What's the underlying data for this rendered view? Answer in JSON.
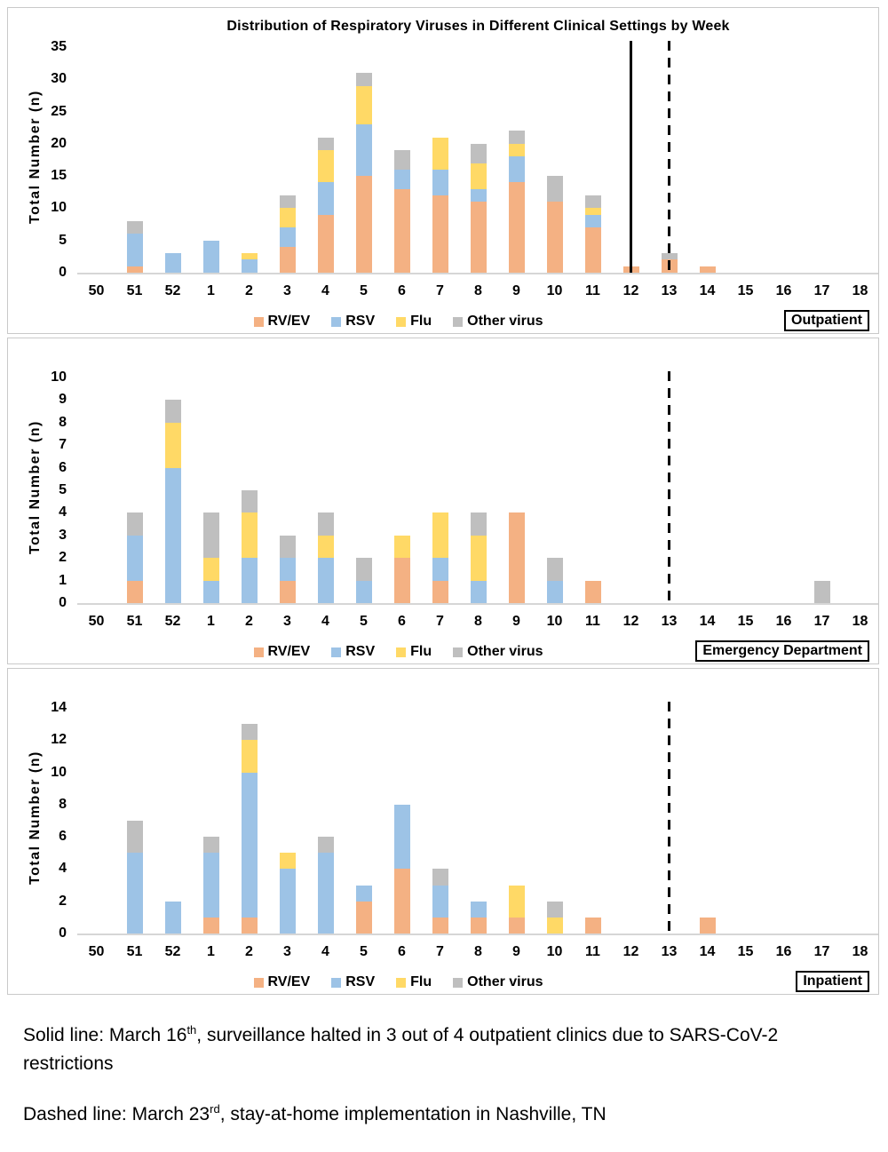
{
  "page": {
    "title": "Distribution of Respiratory Viruses in Different Clinical Settings by Week"
  },
  "footer": {
    "note1_pre": "Solid line: March 16",
    "note1_sup": "th",
    "note1_post": ", surveillance halted in 3 out of 4 outpatient clinics due to SARS-CoV-2 restrictions",
    "note2_pre": "Dashed line: March 23",
    "note2_sup": "rd",
    "note2_post": ", stay-at-home implementation in Nashville, TN"
  },
  "colors": {
    "rv_ev": "#F4B183",
    "rsv": "#9DC3E6",
    "flu": "#FFD966",
    "other": "#BFBFBF",
    "axis_line": "#D6D6D6",
    "marker_line": "#000000"
  },
  "chart_data": [
    {
      "type": "bar",
      "stacked": true,
      "title": "Distribution of Respiratory Viruses in Different Clinical Settings by Week",
      "panel_label": "Outpatient",
      "ylabel": "Total Number (n)",
      "ylim": [
        0,
        35
      ],
      "yticks": [
        0,
        5,
        10,
        15,
        20,
        25,
        30,
        35
      ],
      "grid": false,
      "legend_position": "bottom",
      "categories": [
        "50",
        "51",
        "52",
        "1",
        "2",
        "3",
        "4",
        "5",
        "6",
        "7",
        "8",
        "9",
        "10",
        "11",
        "12",
        "13",
        "14",
        "15",
        "16",
        "17",
        "18"
      ],
      "series": [
        {
          "name": "RV/EV",
          "color": "#F4B183",
          "values": [
            0,
            1,
            0,
            0,
            0,
            4,
            9,
            15,
            13,
            12,
            11,
            14,
            11,
            7,
            1,
            2,
            1,
            0,
            0,
            0,
            0
          ]
        },
        {
          "name": "RSV",
          "color": "#9DC3E6",
          "values": [
            0,
            5,
            3,
            5,
            2,
            3,
            5,
            8,
            3,
            4,
            2,
            4,
            0,
            2,
            0,
            0,
            0,
            0,
            0,
            0,
            0
          ]
        },
        {
          "name": "Flu",
          "color": "#FFD966",
          "values": [
            0,
            0,
            0,
            0,
            1,
            3,
            5,
            6,
            0,
            5,
            4,
            2,
            0,
            1,
            0,
            0,
            0,
            0,
            0,
            0,
            0
          ]
        },
        {
          "name": "Other virus",
          "color": "#BFBFBF",
          "values": [
            0,
            2,
            0,
            0,
            0,
            2,
            2,
            2,
            3,
            0,
            3,
            2,
            4,
            2,
            0,
            1,
            0,
            0,
            0,
            0,
            0
          ]
        }
      ],
      "vlines": [
        {
          "category": "12",
          "style": "solid"
        },
        {
          "category": "13",
          "style": "dashed"
        }
      ]
    },
    {
      "type": "bar",
      "stacked": true,
      "title": "",
      "panel_label": "Emergency Department",
      "ylabel": "Total Number (n)",
      "ylim": [
        0,
        10
      ],
      "yticks": [
        0,
        1,
        2,
        3,
        4,
        5,
        6,
        7,
        8,
        9,
        10
      ],
      "grid": false,
      "legend_position": "bottom",
      "categories": [
        "50",
        "51",
        "52",
        "1",
        "2",
        "3",
        "4",
        "5",
        "6",
        "7",
        "8",
        "9",
        "10",
        "11",
        "12",
        "13",
        "14",
        "15",
        "16",
        "17",
        "18"
      ],
      "series": [
        {
          "name": "RV/EV",
          "color": "#F4B183",
          "values": [
            0,
            1,
            0,
            0,
            0,
            1,
            0,
            0,
            2,
            1,
            0,
            4,
            0,
            1,
            0,
            0,
            0,
            0,
            0,
            0,
            0
          ]
        },
        {
          "name": "RSV",
          "color": "#9DC3E6",
          "values": [
            0,
            2,
            6,
            1,
            2,
            1,
            2,
            1,
            0,
            1,
            1,
            0,
            1,
            0,
            0,
            0,
            0,
            0,
            0,
            0,
            0
          ]
        },
        {
          "name": "Flu",
          "color": "#FFD966",
          "values": [
            0,
            0,
            2,
            1,
            2,
            0,
            1,
            0,
            1,
            2,
            2,
            0,
            0,
            0,
            0,
            0,
            0,
            0,
            0,
            0,
            0
          ]
        },
        {
          "name": "Other virus",
          "color": "#BFBFBF",
          "values": [
            0,
            1,
            1,
            2,
            1,
            1,
            1,
            1,
            0,
            0,
            1,
            0,
            1,
            0,
            0,
            0,
            0,
            0,
            0,
            1,
            0
          ]
        }
      ],
      "vlines": [
        {
          "category": "13",
          "style": "dashed"
        }
      ]
    },
    {
      "type": "bar",
      "stacked": true,
      "title": "",
      "panel_label": "Inpatient",
      "ylabel": "Total Number (n)",
      "ylim": [
        0,
        14
      ],
      "yticks": [
        0,
        2,
        4,
        6,
        8,
        10,
        12,
        14
      ],
      "grid": false,
      "legend_position": "bottom",
      "categories": [
        "50",
        "51",
        "52",
        "1",
        "2",
        "3",
        "4",
        "5",
        "6",
        "7",
        "8",
        "9",
        "10",
        "11",
        "12",
        "13",
        "14",
        "15",
        "16",
        "17",
        "18"
      ],
      "series": [
        {
          "name": "RV/EV",
          "color": "#F4B183",
          "values": [
            0,
            0,
            0,
            1,
            1,
            0,
            0,
            2,
            4,
            1,
            1,
            1,
            0,
            1,
            0,
            0,
            1,
            0,
            0,
            0,
            0
          ]
        },
        {
          "name": "RSV",
          "color": "#9DC3E6",
          "values": [
            0,
            5,
            2,
            4,
            9,
            4,
            5,
            1,
            4,
            2,
            1,
            0,
            0,
            0,
            0,
            0,
            0,
            0,
            0,
            0,
            0
          ]
        },
        {
          "name": "Flu",
          "color": "#FFD966",
          "values": [
            0,
            0,
            0,
            0,
            2,
            1,
            0,
            0,
            0,
            0,
            0,
            2,
            1,
            0,
            0,
            0,
            0,
            0,
            0,
            0,
            0
          ]
        },
        {
          "name": "Other virus",
          "color": "#BFBFBF",
          "values": [
            0,
            2,
            0,
            1,
            1,
            0,
            1,
            0,
            0,
            1,
            0,
            0,
            1,
            0,
            0,
            0,
            0,
            0,
            0,
            0,
            0
          ]
        }
      ],
      "vlines": [
        {
          "category": "13",
          "style": "dashed"
        }
      ]
    }
  ]
}
